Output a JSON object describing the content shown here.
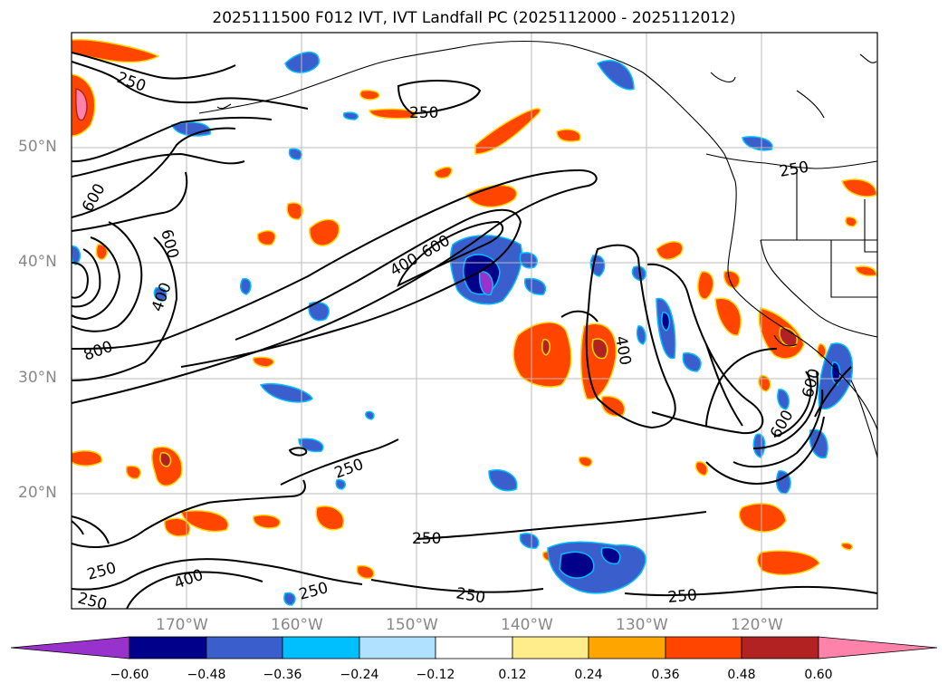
{
  "title": "2025111500 F012 IVT, IVT Landfall PC (2025112000 - 2025112012)",
  "map": {
    "lat_labels": [
      "50°N",
      "40°N",
      "30°N",
      "20°N"
    ],
    "lon_labels": [
      "170°W",
      "160°W",
      "150°W",
      "140°W",
      "130°W",
      "120°W"
    ],
    "contour_labels": [
      "250",
      "250",
      "250",
      "250",
      "250",
      "250",
      "250",
      "250",
      "250",
      "400",
      "400",
      "400",
      "600",
      "600",
      "600",
      "600",
      "800",
      "250",
      "600",
      "400"
    ],
    "colors": {
      "coast": "#000000",
      "grid": "#bbbbbb",
      "contour": "#000000"
    }
  },
  "colorbar": {
    "ticks": [
      "−0.60",
      "−0.48",
      "−0.36",
      "−0.24",
      "−0.12",
      "0.12",
      "0.24",
      "0.36",
      "0.48",
      "0.60"
    ],
    "colors": [
      "#9932cc",
      "#00008b",
      "#3a5fcd",
      "#00bfff",
      "#b0e2ff",
      "#ffffff",
      "#ffec8b",
      "#ffa500",
      "#ff4500",
      "#b22222",
      "#ff82ab"
    ]
  }
}
